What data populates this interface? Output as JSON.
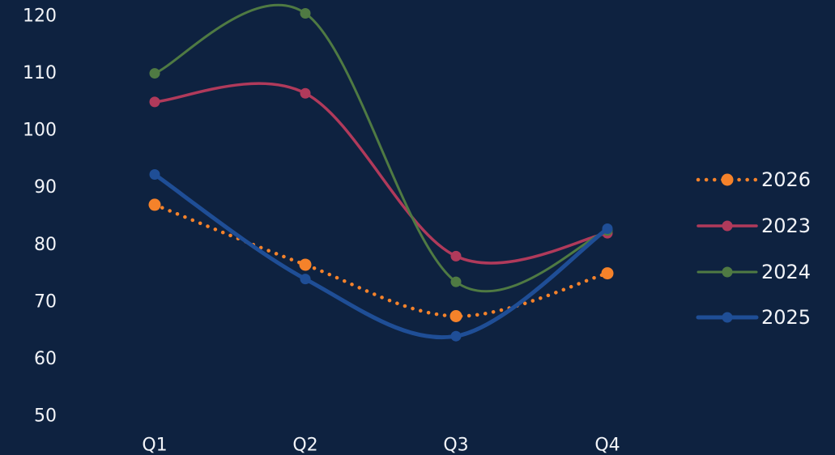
{
  "chart_data": {
    "type": "line",
    "title": "",
    "xlabel": "",
    "ylabel": "",
    "categories": [
      "Q1",
      "Q2",
      "Q3",
      "Q4"
    ],
    "ylim": [
      50,
      120
    ],
    "yticks": [
      50,
      60,
      70,
      80,
      90,
      100,
      110,
      120
    ],
    "grid": false,
    "legend_position": "right",
    "smooth": true,
    "series": [
      {
        "name": "2026",
        "values": [
          87,
          76.5,
          67.5,
          75
        ],
        "color": "#f5822a",
        "dash": "dotted"
      },
      {
        "name": "2023",
        "values": [
          105,
          106.5,
          78,
          82
        ],
        "color": "#b03a5b",
        "dash": "solid"
      },
      {
        "name": "2024",
        "values": [
          110,
          120.5,
          73.5,
          82.5
        ],
        "color": "#4f7a43",
        "dash": "solid"
      },
      {
        "name": "2025",
        "values": [
          92.3,
          74,
          64,
          82.8
        ],
        "color": "#1f4e96",
        "dash": "solid"
      }
    ]
  }
}
